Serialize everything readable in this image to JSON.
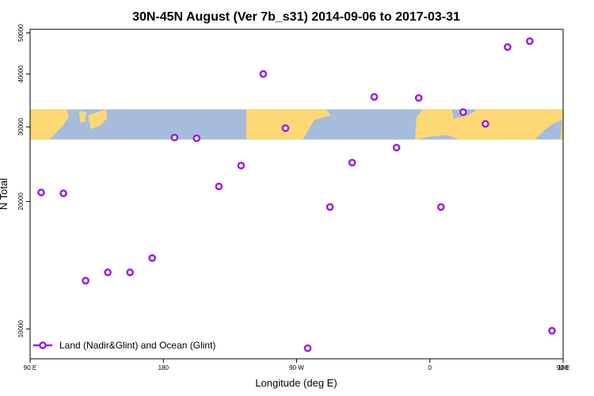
{
  "chart_data": {
    "type": "scatter",
    "title": "30N-45N August (Ver 7b_s31)   2014-09-06 to 2017-03-31",
    "xlabel": "Longitude (deg E)",
    "ylabel": "N Total",
    "x_ticks": [
      "90 E",
      "180",
      "90 W",
      "0",
      "90 E",
      "180"
    ],
    "y_ticks": [
      "10000",
      "20000",
      "30000",
      "40000",
      "50000"
    ],
    "y_scale": "log",
    "xlim": [
      90,
      450
    ],
    "ylim": [
      8500,
      51000
    ],
    "grid": false,
    "legend_position": "bottom-left",
    "map_band_y_range": [
      28000,
      33000
    ],
    "series": [
      {
        "name": "Land (Nadir&Glint) and Ocean (Glint)",
        "color": "#9a1ee6",
        "x": [
          97.5,
          112.5,
          127.5,
          142.5,
          157.5,
          172.5,
          187.5,
          202.5,
          217.5,
          232.5,
          247.5,
          262.5,
          277.5,
          292.5,
          307.5,
          322.5,
          337.5,
          352.5,
          367.5,
          382.5,
          397.5,
          412.5,
          427.5,
          442.5
        ],
        "y": [
          21000,
          20900,
          13000,
          13600,
          13600,
          14700,
          28300,
          28200,
          21700,
          24300,
          40000,
          29800,
          9000,
          19400,
          24700,
          35300,
          26800,
          35100,
          19400,
          32500,
          30500,
          46300,
          47800,
          9900
        ]
      }
    ]
  }
}
